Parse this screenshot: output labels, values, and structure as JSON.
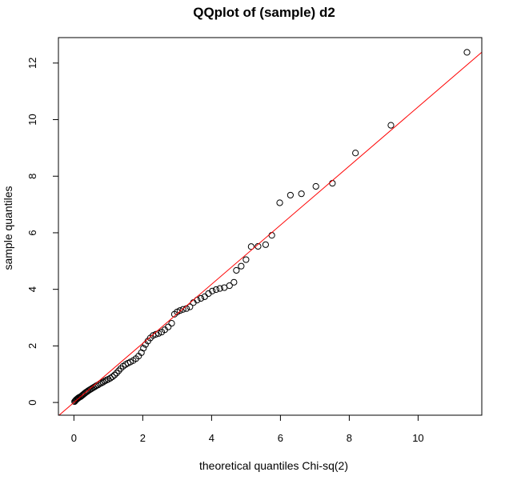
{
  "chart_data": {
    "type": "scatter",
    "title": "QQplot of (sample) d2",
    "xlabel": "theoretical quantiles Chi-sq(2)",
    "ylabel": "sample quantiles",
    "xlim": [
      -0.45,
      11.85
    ],
    "ylim": [
      -0.45,
      12.9
    ],
    "x_ticks": [
      0,
      2,
      4,
      6,
      8,
      10
    ],
    "x_tick_labels": [
      "0",
      "2",
      "4",
      "6",
      "8",
      "10"
    ],
    "y_ticks": [
      0,
      2,
      4,
      6,
      8,
      10,
      12
    ],
    "y_tick_labels": [
      "0",
      "2",
      "4",
      "6",
      "8",
      "10",
      "12"
    ],
    "reference_line": {
      "intercept": 0,
      "slope": 1.045,
      "color": "#ff0000"
    },
    "point_color": "#000000",
    "series": [
      {
        "name": "sample",
        "points": [
          [
            0.02,
            0.03
          ],
          [
            0.04,
            0.06
          ],
          [
            0.06,
            0.09
          ],
          [
            0.08,
            0.11
          ],
          [
            0.1,
            0.13
          ],
          [
            0.12,
            0.15
          ],
          [
            0.14,
            0.17
          ],
          [
            0.17,
            0.19
          ],
          [
            0.2,
            0.21
          ],
          [
            0.23,
            0.24
          ],
          [
            0.26,
            0.27
          ],
          [
            0.29,
            0.3
          ],
          [
            0.32,
            0.33
          ],
          [
            0.35,
            0.36
          ],
          [
            0.38,
            0.38
          ],
          [
            0.41,
            0.41
          ],
          [
            0.45,
            0.44
          ],
          [
            0.49,
            0.47
          ],
          [
            0.53,
            0.5
          ],
          [
            0.57,
            0.53
          ],
          [
            0.61,
            0.56
          ],
          [
            0.65,
            0.59
          ],
          [
            0.7,
            0.62
          ],
          [
            0.75,
            0.66
          ],
          [
            0.8,
            0.69
          ],
          [
            0.85,
            0.72
          ],
          [
            0.9,
            0.76
          ],
          [
            0.95,
            0.79
          ],
          [
            1.0,
            0.82
          ],
          [
            1.06,
            0.86
          ],
          [
            1.12,
            0.91
          ],
          [
            1.18,
            0.97
          ],
          [
            1.24,
            1.04
          ],
          [
            1.3,
            1.12
          ],
          [
            1.36,
            1.2
          ],
          [
            1.43,
            1.28
          ],
          [
            1.5,
            1.34
          ],
          [
            1.57,
            1.39
          ],
          [
            1.64,
            1.43
          ],
          [
            1.72,
            1.48
          ],
          [
            1.8,
            1.55
          ],
          [
            1.88,
            1.64
          ],
          [
            1.96,
            1.76
          ],
          [
            2.02,
            1.92
          ],
          [
            2.08,
            2.05
          ],
          [
            2.15,
            2.17
          ],
          [
            2.22,
            2.28
          ],
          [
            2.3,
            2.37
          ],
          [
            2.38,
            2.41
          ],
          [
            2.46,
            2.44
          ],
          [
            2.55,
            2.49
          ],
          [
            2.64,
            2.57
          ],
          [
            2.74,
            2.67
          ],
          [
            2.84,
            2.8
          ],
          [
            2.92,
            3.12
          ],
          [
            3.0,
            3.2
          ],
          [
            3.08,
            3.25
          ],
          [
            3.17,
            3.29
          ],
          [
            3.27,
            3.32
          ],
          [
            3.37,
            3.38
          ],
          [
            3.47,
            3.53
          ],
          [
            3.58,
            3.62
          ],
          [
            3.69,
            3.68
          ],
          [
            3.8,
            3.74
          ],
          [
            3.91,
            3.85
          ],
          [
            4.02,
            3.94
          ],
          [
            4.13,
            3.99
          ],
          [
            4.24,
            4.03
          ],
          [
            4.37,
            4.06
          ],
          [
            4.52,
            4.13
          ],
          [
            4.65,
            4.25
          ],
          [
            4.72,
            4.67
          ],
          [
            4.86,
            4.82
          ],
          [
            5.0,
            5.05
          ],
          [
            5.15,
            5.51
          ],
          [
            5.35,
            5.52
          ],
          [
            5.57,
            5.58
          ],
          [
            5.75,
            5.91
          ],
          [
            5.98,
            7.06
          ],
          [
            6.29,
            7.33
          ],
          [
            6.61,
            7.38
          ],
          [
            7.03,
            7.64
          ],
          [
            7.51,
            7.75
          ],
          [
            8.18,
            8.82
          ],
          [
            9.21,
            9.8
          ],
          [
            11.42,
            12.38
          ]
        ]
      }
    ]
  }
}
